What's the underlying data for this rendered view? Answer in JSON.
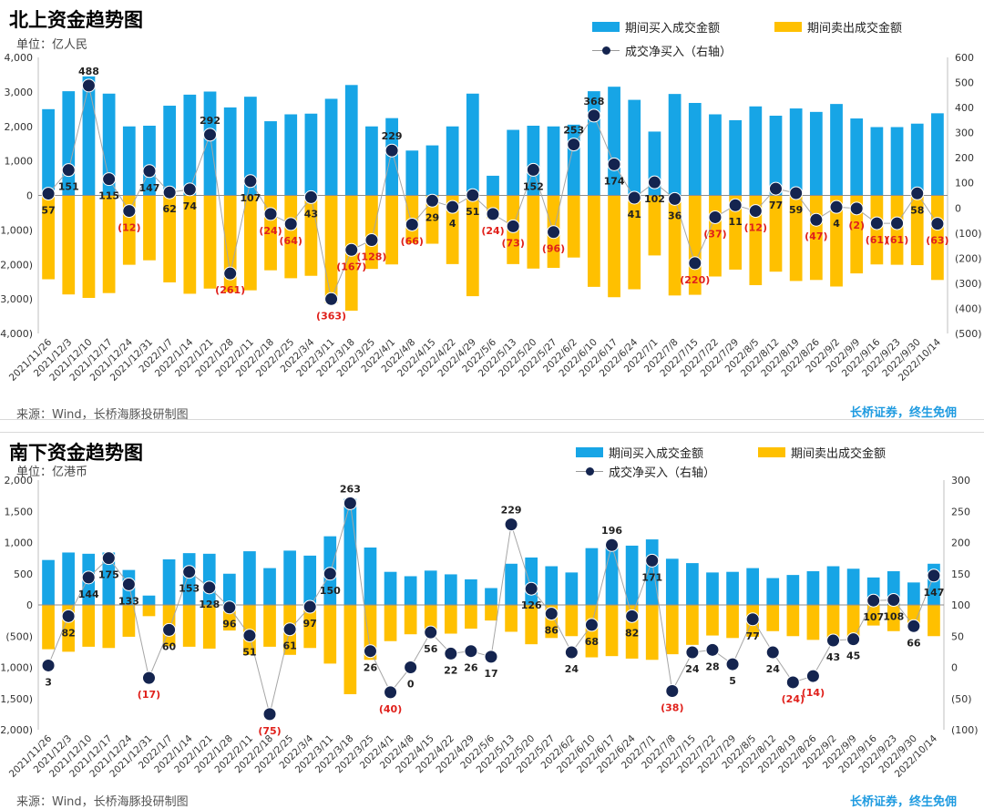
{
  "chart_data": [
    {
      "type": "bar",
      "title": "北上资金趋势图",
      "unit": "单位：亿人民",
      "legend": [
        "期间买入成交金额",
        "期间卖出成交金额",
        "成交净买入（右轴）"
      ],
      "legend_position": "top-right",
      "source": "来源：Wind，长桥海豚投研制图",
      "brand": "长桥证券，终生免佣",
      "left_axis": {
        "ticks": [
          "4,000",
          "3,000",
          "2,000",
          "1,000",
          "0",
          "(1,000)",
          "(2,000)",
          "(3,000)",
          "(4,000)"
        ],
        "ylim": [
          -4000,
          4000
        ]
      },
      "right_axis": {
        "ticks": [
          "600",
          "500",
          "400",
          "300",
          "200",
          "100",
          "0",
          "(100)",
          "(200)",
          "(300)",
          "(400)",
          "(500)"
        ],
        "ylim": [
          -500,
          600
        ]
      },
      "categories": [
        "2021/11/26",
        "2021/12/3",
        "2021/12/10",
        "2021/12/17",
        "2021/12/24",
        "2021/12/31",
        "2022/1/7",
        "2022/1/14",
        "2022/1/21",
        "2022/1/28",
        "2022/2/11",
        "2022/2/18",
        "2022/2/25",
        "2022/3/4",
        "2022/3/11",
        "2022/3/18",
        "2022/3/25",
        "2022/4/1",
        "2022/4/8",
        "2022/4/15",
        "2022/4/22",
        "2022/4/29",
        "2022/5/6",
        "2022/5/13",
        "2022/5/20",
        "2022/5/27",
        "2022/6/2",
        "2022/6/10",
        "2022/6/17",
        "2022/6/24",
        "2022/7/1",
        "2022/7/8",
        "2022/7/15",
        "2022/7/22",
        "2022/7/29",
        "2022/8/5",
        "2022/8/12",
        "2022/8/19",
        "2022/8/26",
        "2022/9/2",
        "2022/9/9",
        "2022/9/16",
        "2022/9/23",
        "2022/9/30",
        "2022/10/14"
      ],
      "tick_labels": [
        "2021/11/26",
        "2021/12/3",
        "2021/12/10",
        "2021/12/17",
        "2021/12/24",
        "2021/12/31",
        "2022/1/7",
        "2022/1/14",
        "2022/1/21",
        "2022/1/28",
        "2022/2/11",
        "2022/2/18",
        "2022/2/25",
        "2022/3/4",
        "2022/3/11",
        "2022/3/18",
        "2022/3/25",
        "2022/4/1",
        "2022/4/8",
        "2022/4/15",
        "2022/4/22",
        "2022/4/29",
        "2022/5/6",
        "2022/5/13",
        "2022/5/20",
        "2022/5/27",
        "2022/6/2",
        "2022/6/10",
        "2022/6/17",
        "2022/6/24",
        "2022/7/1",
        "2022/7/8",
        "2022/7/15",
        "2022/7/22",
        "2022/7/29",
        "2022/8/5",
        "2022/8/12",
        "2022/8/19",
        "2022/8/26",
        "2022/9/2",
        "2022/9/9",
        "2022/9/16",
        "2022/9/23",
        "2022/9/30",
        "2022/10/14"
      ],
      "series": [
        {
          "name": "期间买入成交金额",
          "color": "#17a5e6",
          "axis": "left",
          "values": [
            2500,
            3020,
            3450,
            2950,
            2000,
            2020,
            2600,
            2920,
            3010,
            2550,
            2860,
            2150,
            2350,
            2370,
            2800,
            3200,
            2000,
            2240,
            1300,
            1450,
            2000,
            2950,
            570,
            1900,
            2020,
            2000,
            2050,
            3020,
            3150,
            2770,
            1850,
            2940,
            2680,
            2350,
            2180,
            2580,
            2310,
            2520,
            2420,
            2650,
            2230,
            1980,
            1980,
            2080,
            2380
          ]
        },
        {
          "name": "期间卖出成交金额",
          "color": "#ffc000",
          "axis": "left",
          "values": [
            -2430,
            -2870,
            -2970,
            -2830,
            -2010,
            -1880,
            -2520,
            -2850,
            -2700,
            -2800,
            -2750,
            -2170,
            -2400,
            -2330,
            -3120,
            -3340,
            -2130,
            -2000,
            -1380,
            -1400,
            -1990,
            -2920,
            -660,
            -1990,
            -2120,
            -2100,
            -1800,
            -2650,
            -2950,
            -2720,
            -1740,
            -2900,
            -2880,
            -2350,
            -2150,
            -2600,
            -2210,
            -2480,
            -2450,
            -2640,
            -2260,
            -2000,
            -2010,
            -2020,
            -2450
          ]
        },
        {
          "name": "成交净买入（右轴）",
          "color": "#14244f",
          "axis": "right",
          "values": [
            57,
            151,
            488,
            115,
            -12,
            147,
            62,
            74,
            292,
            -261,
            107,
            -24,
            -64,
            43,
            -363,
            -167,
            -128,
            229,
            -66,
            29,
            4,
            51,
            -24,
            -73,
            152,
            -96,
            253,
            368,
            174,
            41,
            102,
            36,
            -220,
            -37,
            11,
            -12,
            77,
            59,
            -47,
            4,
            -2,
            -61,
            -61,
            58,
            -63
          ],
          "labels": [
            "57",
            "151",
            "488",
            "115",
            "(12)",
            "147",
            "62",
            "74",
            "292",
            "(261)",
            "107",
            "(24)",
            "(64)",
            "43",
            "(363)",
            "(167)",
            "(128)",
            "229",
            "(66)",
            "29",
            "4",
            "51",
            "(24)",
            "(73)",
            "152",
            "(96)",
            "253",
            "368",
            "174",
            "41",
            "102",
            "36",
            "(220)",
            "(37)",
            "11",
            "(12)",
            "77",
            "59",
            "(47)",
            "4",
            "(2)",
            "(61)",
            "(61)",
            "58",
            "(63)"
          ]
        }
      ]
    },
    {
      "type": "bar",
      "title": "南下资金趋势图",
      "unit": "单位：亿港币",
      "legend": [
        "期间买入成交金额",
        "期间卖出成交金额",
        "成交净买入（右轴）"
      ],
      "legend_position": "top-right",
      "source": "来源：Wind，长桥海豚投研制图",
      "brand": "长桥证券，终生免佣",
      "left_axis": {
        "ticks": [
          "2,000",
          "1,500",
          "1,000",
          "500",
          "0",
          "(500)",
          "(1,000)",
          "(1,500)",
          "(2,000)"
        ],
        "ylim": [
          -2000,
          2000
        ]
      },
      "right_axis": {
        "ticks": [
          "300",
          "250",
          "200",
          "150",
          "100",
          "50",
          "0",
          "(50)",
          "(100)"
        ],
        "ylim": [
          -100,
          300
        ]
      },
      "categories": [
        "2021/11/26",
        "2021/12/3",
        "2021/12/10",
        "2021/12/17",
        "2021/12/24",
        "2021/12/31",
        "2022/1/7",
        "2022/1/14",
        "2022/1/21",
        "2022/1/28",
        "2022/2/11",
        "2022/2/18",
        "2022/2/25",
        "2022/3/4",
        "2022/3/11",
        "2022/3/18",
        "2022/3/25",
        "2022/4/1",
        "2022/4/8",
        "2022/4/15",
        "2022/4/22",
        "2022/4/29",
        "2022/5/6",
        "2022/5/13",
        "2022/5/20",
        "2022/5/27",
        "2022/6/2",
        "2022/6/10",
        "2022/6/17",
        "2022/6/24",
        "2022/7/1",
        "2022/7/8",
        "2022/7/15",
        "2022/7/22",
        "2022/7/29",
        "2022/8/5",
        "2022/8/12",
        "2022/8/19",
        "2022/8/26",
        "2022/9/2",
        "2022/9/9",
        "2022/9/16",
        "2022/9/23",
        "2022/9/30",
        "2022/10/14"
      ],
      "tick_labels": [
        "2021/11/26",
        "2021/12/3",
        "2021/12/10",
        "2021/12/17",
        "2021/12/24",
        "2021/12/31",
        "2022/1/7",
        "2022/1/14",
        "2022/1/21",
        "2022/1/28",
        "2022/2/11",
        "2022/2/18",
        "2022/2/25",
        "2022/3/4",
        "2022/3/11",
        "2022/3/18",
        "2022/3/25",
        "2022/4/1",
        "2022/4/8",
        "2022/4/15",
        "2022/4/22",
        "2022/4/29",
        "2022/5/6",
        "2022/5/13",
        "2022/5/20",
        "2022/5/27",
        "2022/6/2",
        "2022/6/10",
        "2022/6/17",
        "2022/6/24",
        "2022/7/1",
        "2022/7/8",
        "2022/7/15",
        "2022/7/22",
        "2022/7/29",
        "2022/8/5",
        "2022/8/12",
        "2022/8/19",
        "2022/8/26",
        "2022/9/2",
        "2022/9/9",
        "2022/9/16",
        "2022/9/23",
        "2022/9/30",
        "2022/10/14"
      ],
      "series": [
        {
          "name": "期间买入成交金额",
          "color": "#17a5e6",
          "axis": "left",
          "values": [
            720,
            840,
            820,
            840,
            560,
            150,
            730,
            830,
            820,
            500,
            860,
            590,
            870,
            790,
            1100,
            1700,
            920,
            530,
            460,
            550,
            490,
            410,
            270,
            660,
            760,
            620,
            520,
            910,
            1000,
            950,
            1050,
            740,
            670,
            520,
            530,
            590,
            430,
            480,
            540,
            620,
            580,
            440,
            540,
            360,
            660
          ]
        },
        {
          "name": "期间卖出成交金额",
          "color": "#ffc000",
          "axis": "left",
          "values": [
            -710,
            -750,
            -670,
            -690,
            -510,
            -180,
            -660,
            -670,
            -700,
            -410,
            -800,
            -670,
            -800,
            -690,
            -940,
            -1430,
            -880,
            -580,
            -470,
            -490,
            -460,
            -380,
            -250,
            -430,
            -630,
            -530,
            -500,
            -840,
            -820,
            -860,
            -880,
            -790,
            -640,
            -490,
            -530,
            -510,
            -420,
            -500,
            -560,
            -570,
            -530,
            -330,
            -420,
            -290,
            -500
          ]
        },
        {
          "name": "成交净买入（右轴）",
          "color": "#14244f",
          "axis": "right",
          "values": [
            3,
            82,
            144,
            175,
            133,
            -17,
            60,
            153,
            128,
            96,
            51,
            -75,
            61,
            97,
            150,
            263,
            26,
            -40,
            0,
            56,
            22,
            26,
            17,
            229,
            126,
            86,
            24,
            68,
            196,
            82,
            171,
            -38,
            24,
            28,
            5,
            77,
            24,
            -24,
            -14,
            43,
            45,
            107,
            108,
            66,
            147
          ],
          "labels": [
            "3",
            "82",
            "144",
            "175",
            "133",
            "(17)",
            "60",
            "153",
            "128",
            "96",
            "51",
            "(75)",
            "61",
            "97",
            "150",
            "263",
            "26",
            "(40)",
            "0",
            "56",
            "22",
            "26",
            "17",
            "229",
            "126",
            "86",
            "24",
            "68",
            "196",
            "82",
            "171",
            "(38)",
            "24",
            "28",
            "5",
            "77",
            "24",
            "(24)",
            "(14)",
            "43",
            "45",
            "107",
            "108",
            "66",
            "147"
          ]
        }
      ]
    }
  ]
}
